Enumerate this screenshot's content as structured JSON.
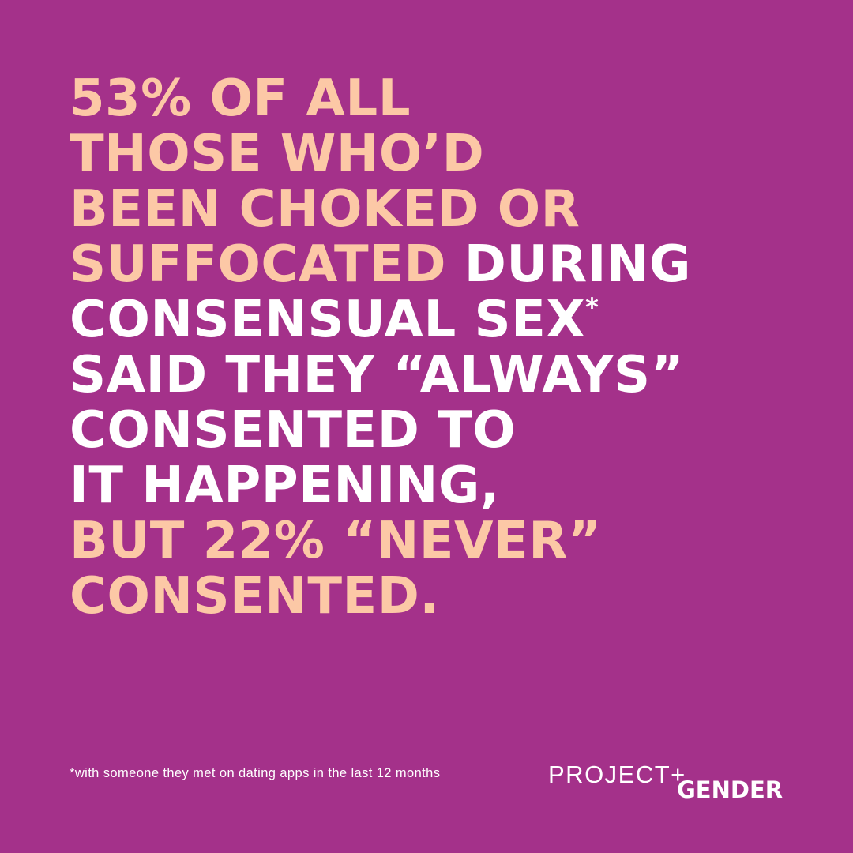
{
  "colors": {
    "background": "#a4318a",
    "accent_peach": "#fcc8a6",
    "text_white": "#ffffff"
  },
  "headline": {
    "line1": "53% OF ALL",
    "line2": "THOSE WHO’D",
    "line3": "BEEN CHOKED OR",
    "line4_peach": "SUFFOCATED",
    "line4_white": " DURING",
    "line5": "CONSENSUAL SEX",
    "line5_sup": "*",
    "line6": "SAID THEY “ALWAYS”",
    "line7": "CONSENTED TO",
    "line8": "IT HAPPENING,",
    "line9": "BUT 22% “NEVER”",
    "line10": "CONSENTED."
  },
  "footnote": "*with someone they met on dating apps in the last 12 months",
  "logo": {
    "project": "PROJECT+",
    "gender": "GENDER"
  }
}
